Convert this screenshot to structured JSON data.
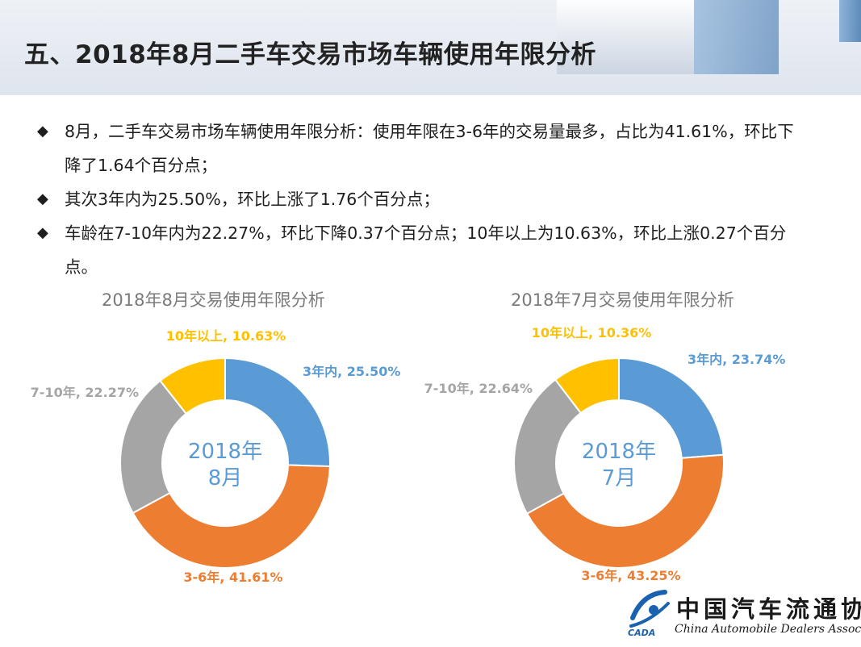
{
  "header": {
    "title": "五、2018年8月二手车交易市场车辆使用年限分析"
  },
  "bullets": [
    {
      "text": "8月，二手车交易市场车辆使用年限分析：使用年限在3-6年的交易量最多，占比为41.61%，环比下降了1.64个百分点；"
    },
    {
      "text": "其次3年内为25.50%，环比上涨了1.76个百分点；"
    },
    {
      "text": "车龄在7-10年内为22.27%，环比下降0.37个百分点；10年以上为10.63%，环比上涨0.27个百分点。"
    }
  ],
  "bullet_icon": "diamond-icon",
  "colors": {
    "s1": "#5b9bd5",
    "s2": "#ed7d31",
    "s3": "#a5a5a5",
    "s4": "#ffc000",
    "center_text": "#5b9bd5"
  },
  "chart_data": [
    {
      "type": "pie",
      "title": "2018年8月交易使用年限分析",
      "center_label": [
        "2018年",
        "8月"
      ],
      "series": [
        {
          "name": "3年内",
          "value": 25.5,
          "label": "3年内, 25.50%"
        },
        {
          "name": "3-6年",
          "value": 41.61,
          "label": "3-6年, 41.61%"
        },
        {
          "name": "7-10年",
          "value": 22.27,
          "label": "7-10年, 22.27%"
        },
        {
          "name": "10年以上",
          "value": 10.63,
          "label": "10年以上, 10.63%"
        }
      ]
    },
    {
      "type": "pie",
      "title": "2018年7月交易使用年限分析",
      "center_label": [
        "2018年",
        "7月"
      ],
      "series": [
        {
          "name": "3年内",
          "value": 23.74,
          "label": "3年内, 23.74%"
        },
        {
          "name": "3-6年",
          "value": 43.25,
          "label": "3-6年, 43.25%"
        },
        {
          "name": "7-10年",
          "value": 22.64,
          "label": "7-10年, 22.64%"
        },
        {
          "name": "10年以上",
          "value": 10.36,
          "label": "10年以上, 10.36%"
        }
      ]
    }
  ],
  "logo": {
    "name_cn": "中国汽车流通协会",
    "name_en": "China Automobile Dealers Association",
    "abbr": "CADA"
  }
}
